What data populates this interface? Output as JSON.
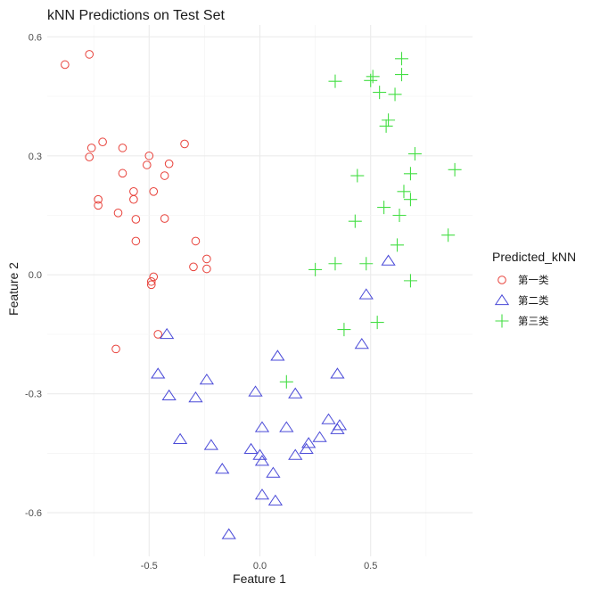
{
  "chart_data": {
    "type": "scatter",
    "title": "kNN Predictions on Test Set",
    "xlabel": "Feature 1",
    "ylabel": "Feature 2",
    "xlim": [
      -0.96,
      0.96
    ],
    "ylim": [
      -0.71,
      0.63
    ],
    "x_ticks": [
      -0.5,
      0.0,
      0.5
    ],
    "x_tick_labels": [
      "-0.5",
      "0.0",
      "0.5"
    ],
    "y_ticks": [
      -0.6,
      -0.3,
      0.0,
      0.3,
      0.6
    ],
    "y_tick_labels": [
      "-0.6",
      "-0.3",
      "0.0",
      "0.3",
      "0.6"
    ],
    "grid": true,
    "legend": {
      "title": "Predicted_kNN",
      "placement": "right",
      "entries": [
        "第一类",
        "第二类",
        "第三类"
      ]
    },
    "series": [
      {
        "name": "第一类",
        "marker": "circle",
        "color": "#e8413a",
        "points": [
          [
            -0.88,
            0.53
          ],
          [
            -0.77,
            0.556
          ],
          [
            -0.71,
            0.335
          ],
          [
            -0.76,
            0.32
          ],
          [
            -0.77,
            0.297
          ],
          [
            -0.62,
            0.32
          ],
          [
            -0.5,
            0.3
          ],
          [
            -0.51,
            0.277
          ],
          [
            -0.62,
            0.256
          ],
          [
            -0.34,
            0.33
          ],
          [
            -0.41,
            0.28
          ],
          [
            -0.43,
            0.25
          ],
          [
            -0.57,
            0.21
          ],
          [
            -0.57,
            0.19
          ],
          [
            -0.48,
            0.21
          ],
          [
            -0.73,
            0.19
          ],
          [
            -0.73,
            0.175
          ],
          [
            -0.64,
            0.156
          ],
          [
            -0.56,
            0.14
          ],
          [
            -0.43,
            0.142
          ],
          [
            -0.56,
            0.085
          ],
          [
            -0.29,
            0.085
          ],
          [
            -0.24,
            0.04
          ],
          [
            -0.3,
            0.02
          ],
          [
            -0.24,
            0.015
          ],
          [
            -0.48,
            -0.005
          ],
          [
            -0.49,
            -0.017
          ],
          [
            -0.49,
            -0.025
          ],
          [
            -0.46,
            -0.15
          ],
          [
            -0.65,
            -0.187
          ]
        ]
      },
      {
        "name": "第二类",
        "marker": "triangle",
        "color": "#4a4ad8",
        "points": [
          [
            0.58,
            0.035
          ],
          [
            0.48,
            -0.05
          ],
          [
            -0.42,
            -0.15
          ],
          [
            0.46,
            -0.175
          ],
          [
            0.08,
            -0.205
          ],
          [
            -0.46,
            -0.25
          ],
          [
            -0.24,
            -0.265
          ],
          [
            0.35,
            -0.25
          ],
          [
            -0.02,
            -0.295
          ],
          [
            0.16,
            -0.3
          ],
          [
            -0.41,
            -0.305
          ],
          [
            -0.29,
            -0.31
          ],
          [
            0.31,
            -0.365
          ],
          [
            0.36,
            -0.38
          ],
          [
            0.01,
            -0.385
          ],
          [
            0.12,
            -0.385
          ],
          [
            0.35,
            -0.39
          ],
          [
            0.27,
            -0.41
          ],
          [
            -0.36,
            -0.415
          ],
          [
            0.22,
            -0.425
          ],
          [
            -0.22,
            -0.43
          ],
          [
            0.21,
            -0.44
          ],
          [
            -0.04,
            -0.44
          ],
          [
            0.16,
            -0.455
          ],
          [
            0.0,
            -0.455
          ],
          [
            0.01,
            -0.47
          ],
          [
            -0.17,
            -0.49
          ],
          [
            0.06,
            -0.5
          ],
          [
            0.01,
            -0.555
          ],
          [
            0.07,
            -0.57
          ],
          [
            -0.14,
            -0.655
          ]
        ]
      },
      {
        "name": "第三类",
        "marker": "plus",
        "color": "#43de43",
        "points": [
          [
            0.64,
            0.545
          ],
          [
            0.51,
            0.5
          ],
          [
            0.64,
            0.505
          ],
          [
            0.5,
            0.49
          ],
          [
            0.34,
            0.488
          ],
          [
            0.54,
            0.46
          ],
          [
            0.61,
            0.455
          ],
          [
            0.58,
            0.39
          ],
          [
            0.57,
            0.375
          ],
          [
            0.7,
            0.305
          ],
          [
            0.88,
            0.265
          ],
          [
            0.68,
            0.255
          ],
          [
            0.44,
            0.25
          ],
          [
            0.65,
            0.21
          ],
          [
            0.68,
            0.19
          ],
          [
            0.56,
            0.17
          ],
          [
            0.63,
            0.15
          ],
          [
            0.43,
            0.135
          ],
          [
            0.85,
            0.1
          ],
          [
            0.62,
            0.075
          ],
          [
            0.34,
            0.028
          ],
          [
            0.48,
            0.028
          ],
          [
            0.25,
            0.013
          ],
          [
            0.68,
            -0.015
          ],
          [
            0.53,
            -0.12
          ],
          [
            0.38,
            -0.138
          ],
          [
            0.12,
            -0.27
          ]
        ]
      }
    ]
  }
}
